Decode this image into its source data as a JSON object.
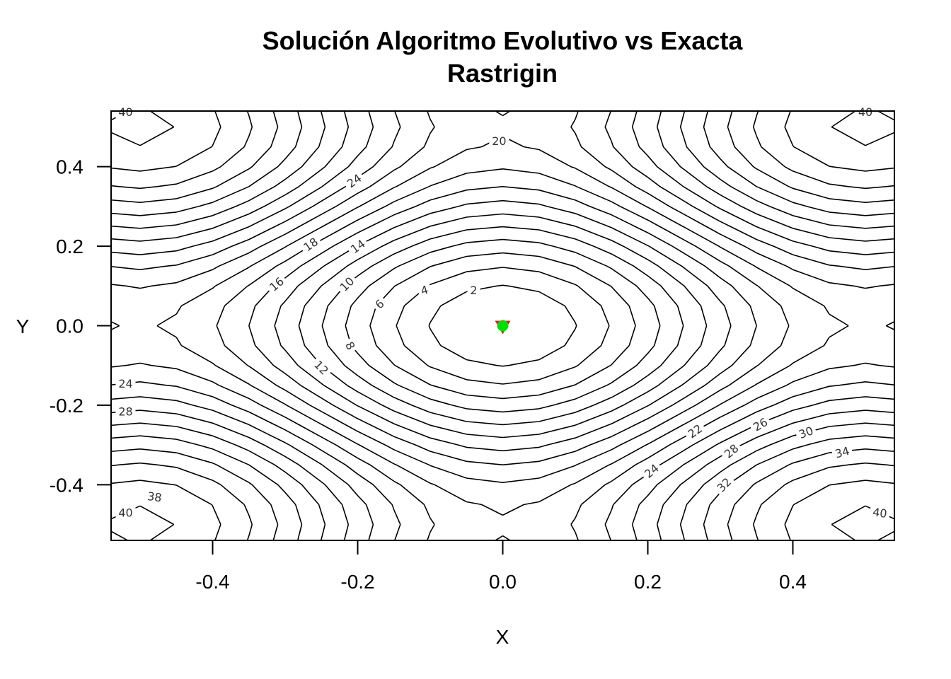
{
  "chart_data": {
    "type": "contour",
    "title": "Solución Algoritmo Evolutivo vs Exacta",
    "subtitle": "Rastrigin",
    "xlabel": "X",
    "ylabel": "Y",
    "function": "Rastrigin",
    "xlim": [
      -0.54,
      0.54
    ],
    "ylim": [
      -0.54,
      0.54
    ],
    "x_ticks": [
      "-0.4",
      "-0.2",
      "0.0",
      "0.2",
      "0.4"
    ],
    "y_ticks": [
      "0.4",
      "0.2",
      "0.0",
      "-0.2",
      "-0.4"
    ],
    "contour_levels": [
      2,
      4,
      6,
      8,
      10,
      12,
      14,
      16,
      18,
      20,
      22,
      24,
      26,
      28,
      30,
      32,
      34,
      36,
      38,
      40
    ],
    "contour_labels": [
      {
        "text": "2",
        "x": -0.04,
        "y": 0.09,
        "angle": 0
      },
      {
        "text": "4",
        "x": -0.108,
        "y": 0.09,
        "angle": -15
      },
      {
        "text": "6",
        "x": -0.17,
        "y": 0.055,
        "angle": -40
      },
      {
        "text": "8",
        "x": -0.21,
        "y": -0.05,
        "angle": 60
      },
      {
        "text": "10",
        "x": -0.215,
        "y": 0.105,
        "angle": -45
      },
      {
        "text": "12",
        "x": -0.25,
        "y": -0.105,
        "angle": 45
      },
      {
        "text": "14",
        "x": -0.2,
        "y": 0.2,
        "angle": -35
      },
      {
        "text": "16",
        "x": -0.312,
        "y": 0.105,
        "angle": -40
      },
      {
        "text": "18",
        "x": -0.265,
        "y": 0.205,
        "angle": -35
      },
      {
        "text": "20",
        "x": -0.005,
        "y": 0.465,
        "angle": 0
      },
      {
        "text": "24",
        "x": -0.205,
        "y": 0.365,
        "angle": -35
      },
      {
        "text": "24",
        "x": -0.52,
        "y": -0.145,
        "angle": 0
      },
      {
        "text": "28",
        "x": -0.52,
        "y": -0.215,
        "angle": 0
      },
      {
        "text": "38",
        "x": -0.48,
        "y": -0.43,
        "angle": 8
      },
      {
        "text": "40",
        "x": -0.52,
        "y": -0.47,
        "angle": 0
      },
      {
        "text": "22",
        "x": 0.265,
        "y": -0.265,
        "angle": -35
      },
      {
        "text": "26",
        "x": 0.355,
        "y": -0.248,
        "angle": -30
      },
      {
        "text": "30",
        "x": 0.418,
        "y": -0.268,
        "angle": -20
      },
      {
        "text": "34",
        "x": 0.468,
        "y": -0.318,
        "angle": -15
      },
      {
        "text": "28",
        "x": 0.315,
        "y": -0.315,
        "angle": -40
      },
      {
        "text": "24",
        "x": 0.205,
        "y": -0.365,
        "angle": -40
      },
      {
        "text": "32",
        "x": 0.305,
        "y": -0.4,
        "angle": -45
      },
      {
        "text": "40",
        "x": 0.52,
        "y": -0.47,
        "angle": 8
      },
      {
        "text": "40",
        "x": -0.52,
        "y": 0.538,
        "angle": 0
      },
      {
        "text": "40",
        "x": 0.5,
        "y": 0.538,
        "angle": 0
      }
    ],
    "points": [
      {
        "name": "Exacta",
        "x": 0.0,
        "y": 0.0,
        "marker": "triangle-down",
        "color": "#e31a1c"
      },
      {
        "name": "Algoritmo Evolutivo",
        "x": 0.0,
        "y": 0.0,
        "marker": "circle",
        "color": "#00e000"
      }
    ],
    "grid": false,
    "legend": "none"
  }
}
